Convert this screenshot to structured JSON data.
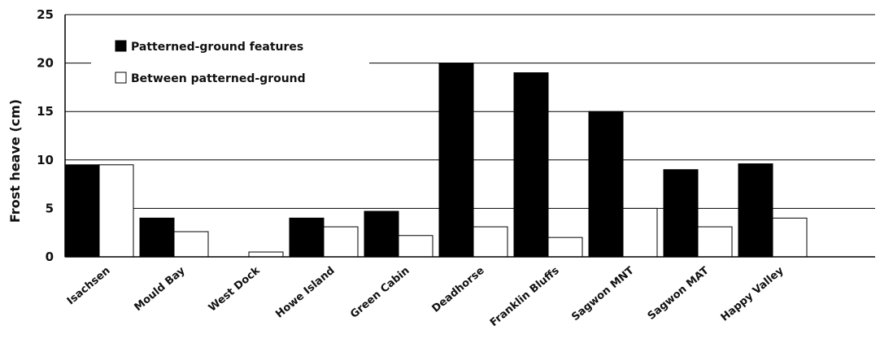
{
  "chart_data": {
    "type": "bar",
    "ylabel": "Frost heave (cm)",
    "xlabel": "",
    "title": "",
    "ylim": [
      0,
      25
    ],
    "yticks": [
      0,
      5,
      10,
      15,
      20,
      25
    ],
    "grid": true,
    "legend_position": "top-left",
    "categories": [
      "Isachsen",
      "Mould Bay",
      "West Dock",
      "Howe Island",
      "Green Cabin",
      "Deadhorse",
      "Franklin Bluffs",
      "Sagwon MNT",
      "Sagwon MAT",
      "Happy Valley"
    ],
    "series": [
      {
        "name": "Patterned-ground features",
        "color": "#000000",
        "values": [
          9.5,
          4,
          0,
          4,
          4.7,
          20,
          19,
          15,
          9,
          9.6
        ]
      },
      {
        "name": "Between patterned-ground",
        "color": "#ffffff",
        "values": [
          9.5,
          2.6,
          0.5,
          3.1,
          2.2,
          3.1,
          2,
          5,
          3.1,
          4
        ]
      }
    ]
  }
}
